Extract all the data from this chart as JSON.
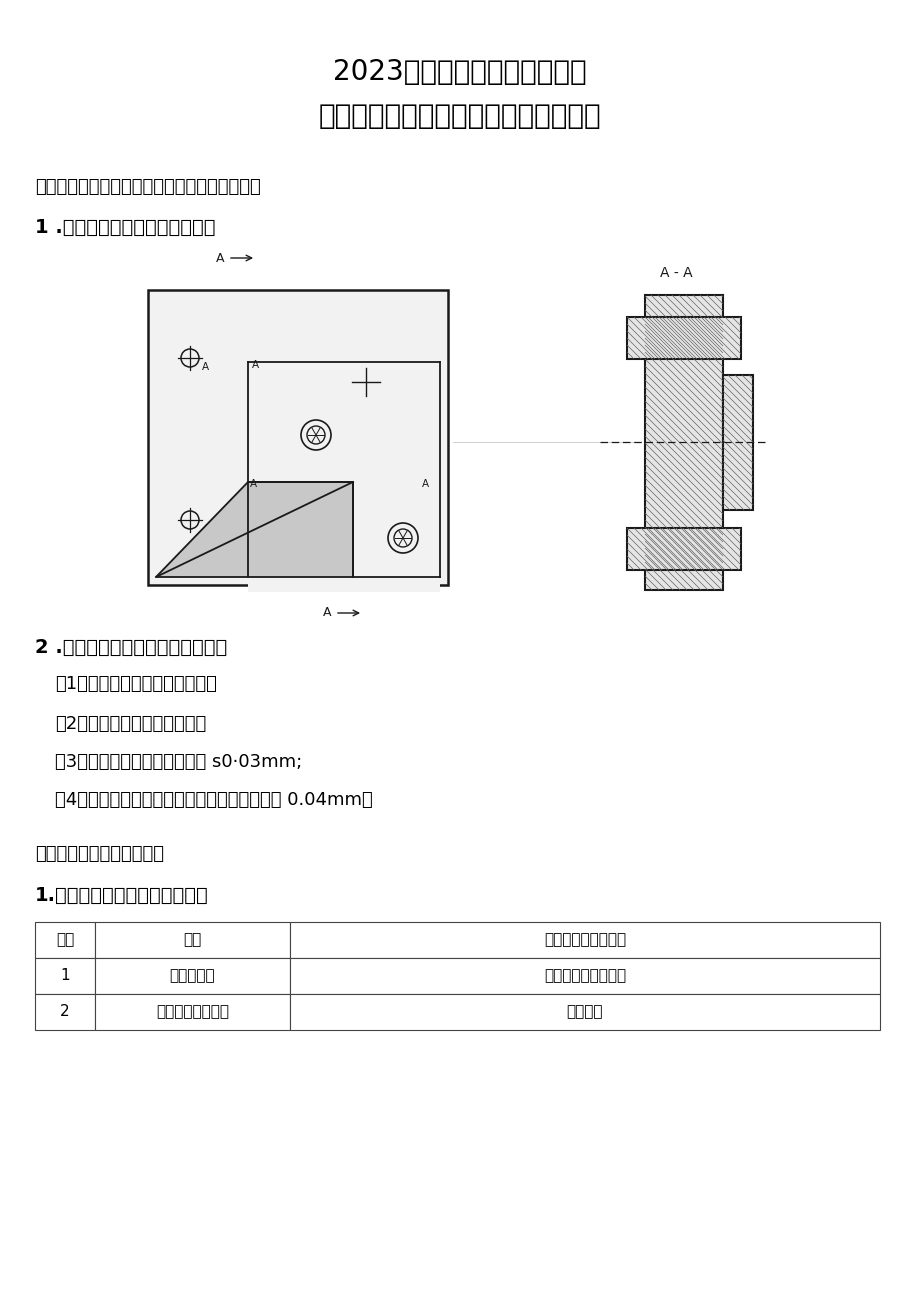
{
  "title1": "2023年广西职业院校技能大赛",
  "title2": "中职组《装配鑴工技术》赛项竞赛样题",
  "section1": "一、装配鑴工零件手工制作（内方斜块镶配件）",
  "subsection1": "1 .零件手工制作部件装配示意图",
  "subsection2": "2 .零件手工制作部件装配技术要求",
  "req1": "（1）工件表面不得有明显损伤；",
  "req2": "（2）螺钉紧固、定位销就位；",
  "req3": "（3）镶配件配合面的配合间隙 s0·03mm;",
  "req4": "（4）制作件装配完成后，侧边的错位量不大于 0.04mm。",
  "section2": "二、机械部件的装配与调整",
  "table_title": "1.二维工作台部件的装配与调整",
  "table_headers": [
    "序号",
    "项目",
    "操作内容与评分标准"
  ],
  "table_rows": [
    [
      "1",
      "二维工作台",
      "动作规范、方法正确"
    ],
    [
      "2",
      "台板、导轨、丝杆",
      "清洗清理"
    ]
  ],
  "bg_color": "#ffffff"
}
